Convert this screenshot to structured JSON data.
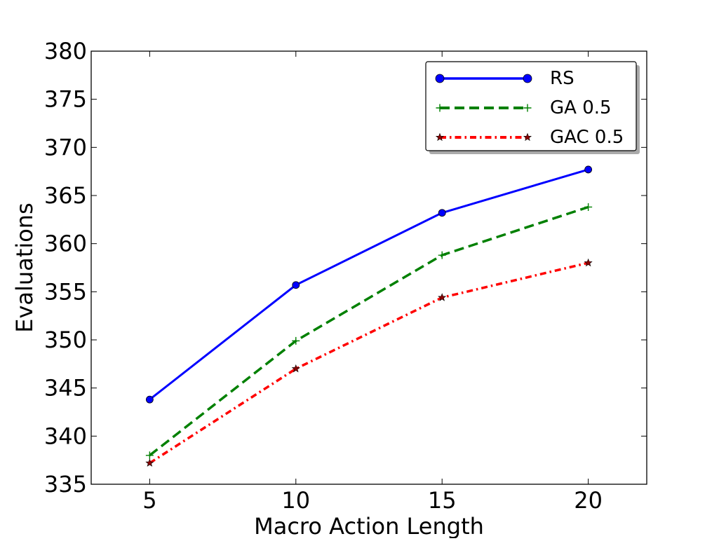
{
  "chart_data": {
    "type": "line",
    "title": "",
    "xlabel": "Macro Action Length",
    "ylabel": "Evaluations",
    "xlim": [
      3,
      22
    ],
    "ylim": [
      335,
      380
    ],
    "xticks": [
      5,
      10,
      15,
      20
    ],
    "yticks": [
      335,
      340,
      345,
      350,
      355,
      360,
      365,
      370,
      375,
      380
    ],
    "grid": false,
    "legend_position": "top-right",
    "x": [
      5,
      10,
      15,
      20
    ],
    "series": [
      {
        "name": "RS",
        "values": [
          343.8,
          355.7,
          363.2,
          367.7
        ],
        "color": "#0000ff",
        "line_style": "solid",
        "marker": "circle"
      },
      {
        "name": "GA 0.5",
        "values": [
          338.0,
          349.9,
          358.8,
          363.8
        ],
        "color": "#008000",
        "line_style": "dashed",
        "marker": "plus"
      },
      {
        "name": "GAC 0.5",
        "values": [
          337.2,
          347.0,
          354.4,
          358.0
        ],
        "color": "#ff0000",
        "line_style": "dash-dot",
        "marker": "star"
      }
    ]
  }
}
